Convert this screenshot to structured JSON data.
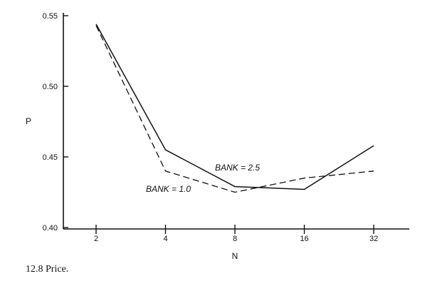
{
  "caption": "12.8 Price.",
  "chart_data": {
    "type": "line",
    "title": "",
    "xlabel": "N",
    "ylabel": "P",
    "x_scale": "log2",
    "categories": [
      "2",
      "4",
      "8",
      "16",
      "32"
    ],
    "x": [
      2,
      4,
      8,
      16,
      32
    ],
    "ylim": [
      0.4,
      0.55
    ],
    "yticks": [
      "0.40",
      "0.45",
      "0.50",
      "0.55"
    ],
    "grid": false,
    "series": [
      {
        "name": "BANK = 2.5",
        "style": "solid",
        "values": [
          0.544,
          0.455,
          0.429,
          0.427,
          0.458
        ]
      },
      {
        "name": "BANK = 1.0",
        "style": "dashed",
        "values": [
          0.543,
          0.44,
          0.425,
          0.435,
          0.44
        ]
      }
    ]
  }
}
